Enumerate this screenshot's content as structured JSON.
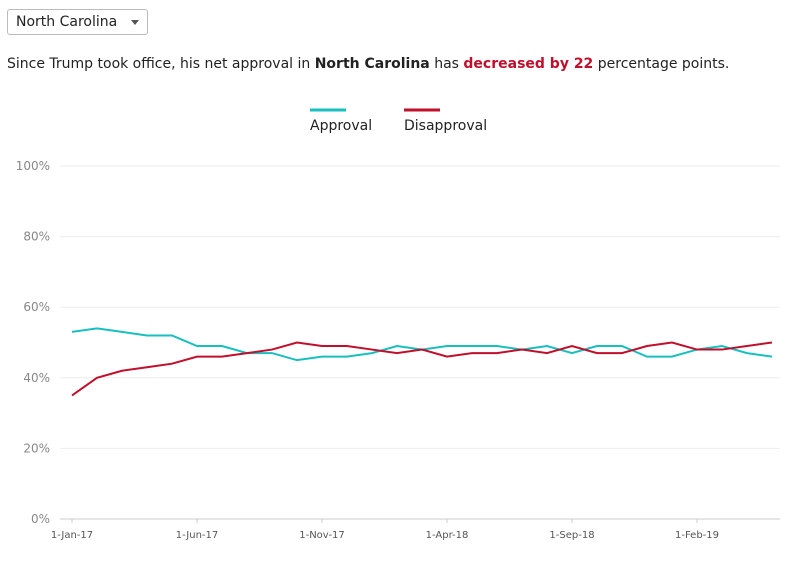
{
  "dropdown": {
    "selected": "North Carolina"
  },
  "summary": {
    "parts": [
      "Since Trump took office, his net approval in ",
      "North Carolina",
      " has ",
      "decreased by 22",
      " percentage points."
    ]
  },
  "chart_data": {
    "type": "line",
    "x": [
      "2017-01-01",
      "2017-02-01",
      "2017-03-01",
      "2017-04-01",
      "2017-05-01",
      "2017-06-01",
      "2017-07-01",
      "2017-08-01",
      "2017-09-01",
      "2017-10-01",
      "2017-11-01",
      "2017-12-01",
      "2018-01-01",
      "2018-02-01",
      "2018-03-01",
      "2018-04-01",
      "2018-05-01",
      "2018-06-01",
      "2018-07-01",
      "2018-08-01",
      "2018-09-01",
      "2018-10-01",
      "2018-11-01",
      "2018-12-01",
      "2019-01-01",
      "2019-02-01",
      "2019-03-01",
      "2019-04-01",
      "2019-05-01"
    ],
    "series": [
      {
        "name": "Approval",
        "color": "#17bfbf",
        "values": [
          53,
          54,
          53,
          52,
          52,
          49,
          49,
          47,
          47,
          45,
          46,
          46,
          47,
          49,
          48,
          49,
          49,
          49,
          48,
          49,
          47,
          49,
          49,
          46,
          46,
          48,
          49,
          47,
          46
        ]
      },
      {
        "name": "Disapproval",
        "color": "#c10f2b",
        "values": [
          35,
          40,
          42,
          43,
          44,
          46,
          46,
          47,
          48,
          50,
          49,
          49,
          48,
          47,
          48,
          46,
          47,
          47,
          48,
          47,
          49,
          47,
          47,
          49,
          50,
          48,
          48,
          49,
          50
        ]
      }
    ],
    "xlim": [
      "2017-01-01",
      "2019-05-01"
    ],
    "xticks": [
      {
        "value": "2017-01-01",
        "label": "1-Jan-17"
      },
      {
        "value": "2017-06-01",
        "label": "1-Jun-17"
      },
      {
        "value": "2017-11-01",
        "label": "1-Nov-17"
      },
      {
        "value": "2018-04-01",
        "label": "1-Apr-18"
      },
      {
        "value": "2018-09-01",
        "label": "1-Sep-18"
      },
      {
        "value": "2019-02-01",
        "label": "1-Feb-19"
      }
    ],
    "ylim": [
      0,
      100
    ],
    "yticks": [
      {
        "value": 0,
        "label": "0%"
      },
      {
        "value": 20,
        "label": "20%"
      },
      {
        "value": 40,
        "label": "40%"
      },
      {
        "value": 60,
        "label": "60%"
      },
      {
        "value": 80,
        "label": "80%"
      },
      {
        "value": 100,
        "label": "100%"
      }
    ],
    "grid": true,
    "legend": "top"
  }
}
